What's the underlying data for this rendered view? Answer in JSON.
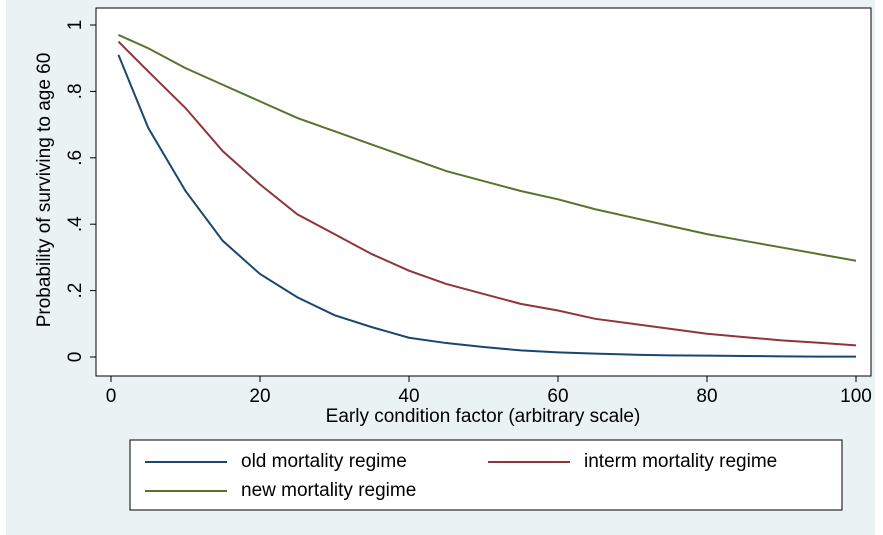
{
  "chart_data": {
    "type": "line",
    "x_label": "Early condition factor (arbitrary scale)",
    "y_label": "Probability of surviving to age 60",
    "x": [
      1,
      5,
      10,
      15,
      20,
      25,
      30,
      35,
      40,
      45,
      50,
      55,
      60,
      65,
      70,
      75,
      80,
      85,
      90,
      95,
      100
    ],
    "series": [
      {
        "name": "old mortality regime",
        "color": "#1a476f",
        "values": [
          0.91,
          0.69,
          0.5,
          0.35,
          0.25,
          0.18,
          0.126,
          0.09,
          0.058,
          0.042,
          0.03,
          0.02,
          0.014,
          0.01,
          0.007,
          0.005,
          0.004,
          0.003,
          0.002,
          0.001,
          0.001
        ]
      },
      {
        "name": "interm mortality regime",
        "color": "#90353b",
        "values": [
          0.95,
          0.86,
          0.75,
          0.62,
          0.52,
          0.43,
          0.37,
          0.31,
          0.26,
          0.22,
          0.19,
          0.16,
          0.14,
          0.115,
          0.1,
          0.085,
          0.07,
          0.06,
          0.05,
          0.043,
          0.035
        ]
      },
      {
        "name": "new mortality regime",
        "color": "#55752f",
        "values": [
          0.97,
          0.93,
          0.87,
          0.82,
          0.77,
          0.72,
          0.68,
          0.64,
          0.6,
          0.56,
          0.53,
          0.5,
          0.475,
          0.445,
          0.42,
          0.395,
          0.37,
          0.35,
          0.33,
          0.31,
          0.29
        ]
      }
    ],
    "xlim": [
      0,
      100
    ],
    "xticks": [
      0,
      20,
      40,
      60,
      80,
      100
    ],
    "ylim": [
      0,
      1
    ],
    "yticks": [
      0,
      {
        "value": 0.2,
        "label": ".2"
      },
      {
        "value": 0.4,
        "label": ".4"
      },
      {
        "value": 0.6,
        "label": ".6"
      },
      {
        "value": 0.8,
        "label": ".8"
      },
      1
    ],
    "grid": false
  }
}
